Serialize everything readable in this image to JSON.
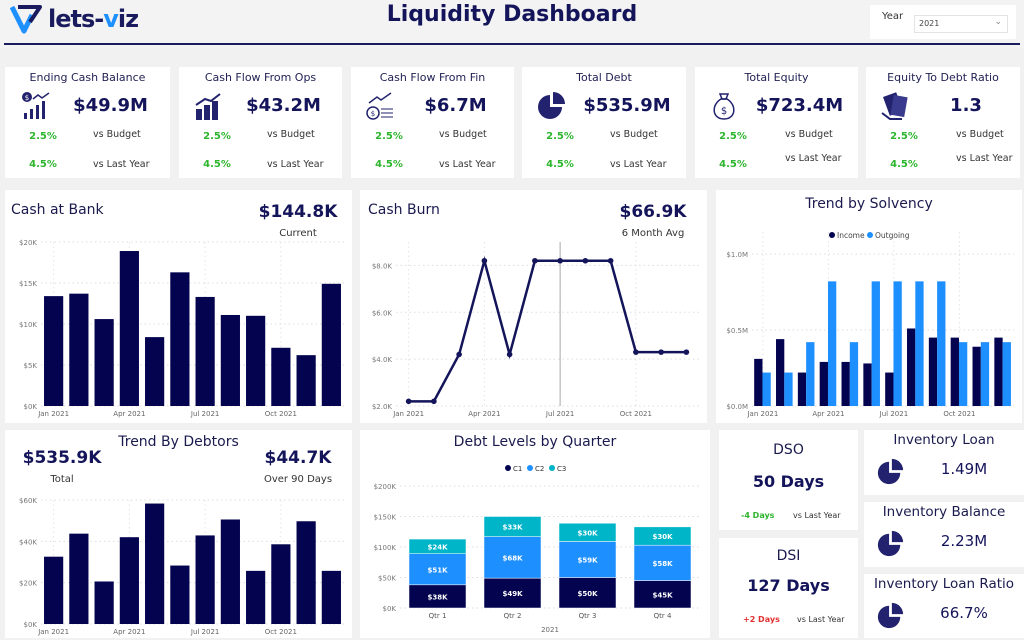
{
  "header": {
    "logo": "lets-viz",
    "title": "Liquidity Dashboard",
    "year_label": "Year",
    "year_value": "2021"
  },
  "colors": {
    "navy": "#03034f",
    "blue": "#1e8fff",
    "teal": "#00b5c8",
    "green": "#2db52d",
    "red": "#e03030"
  },
  "kpis": [
    {
      "title": "Ending Cash Balance",
      "icon": "cash-growth-icon",
      "value": "$49.9M",
      "budget": "2.5%",
      "budget_label": "vs Budget",
      "ly": "4.5%",
      "ly_label": "vs Last Year"
    },
    {
      "title": "Cash Flow From Ops",
      "icon": "bar-growth-icon",
      "value": "$43.2M",
      "budget": "2.5%",
      "budget_label": "vs Budget",
      "ly": "4.5%",
      "ly_label": "vs Last Year"
    },
    {
      "title": "Cash Flow From Fin",
      "icon": "coin-trend-icon",
      "value": "$6.7M",
      "budget": "2.5%",
      "budget_label": "vs Budget",
      "ly": "4.5%",
      "ly_label": "vs Last Year"
    },
    {
      "title": "Total Debt",
      "icon": "pie-chart-icon",
      "value": "$535.9M",
      "budget": "2.5%",
      "budget_label": "vs Budget",
      "ly": "4.5%",
      "ly_label": "vs Last Year"
    },
    {
      "title": "Total Equity",
      "icon": "money-bag-icon",
      "value": "$723.4M",
      "budget": "2.5%",
      "budget_label": "vs Budget",
      "ly": "4.5%",
      "ly_label": "vs Last Year"
    },
    {
      "title": "Equity To Debt Ratio",
      "icon": "cash-hand-icon",
      "value": "1.3",
      "budget": "2.5%",
      "budget_label": "vs Budget",
      "ly": "4.5%",
      "ly_label": "vs Last Year"
    }
  ],
  "cash_bank": {
    "title": "Cash at Bank",
    "value": "$144.8K",
    "sub": "Current"
  },
  "cash_burn": {
    "title": "Cash Burn",
    "value": "$66.9K",
    "sub": "6 Month Avg"
  },
  "debtors": {
    "title": "Trend By Debtors",
    "total": "$535.9K",
    "total_label": "Total",
    "over90": "$44.7K",
    "over90_label": "Over 90 Days"
  },
  "dso": {
    "title": "DSO",
    "value": "50 Days",
    "delta": "-4 Days",
    "delta_label": "vs Last Year"
  },
  "dsi": {
    "title": "DSI",
    "value": "127 Days",
    "delta": "+2 Days",
    "delta_label": "vs Last Year"
  },
  "inventory": [
    {
      "title": "Inventory Loan",
      "value": "1.49M",
      "icon": "pie-chart-icon"
    },
    {
      "title": "Inventory Balance",
      "value": "2.23M",
      "icon": "pie-chart-icon"
    },
    {
      "title": "Inventory Loan Ratio",
      "value": "66.7%",
      "icon": "pie-chart-icon"
    }
  ],
  "chart_data": [
    {
      "id": "cash_bank",
      "type": "bar",
      "x": [
        "Jan 2021",
        "Feb 2021",
        "Mar 2021",
        "Apr 2021",
        "May 2021",
        "Jun 2021",
        "Jul 2021",
        "Aug 2021",
        "Sep 2021",
        "Oct 2021",
        "Nov 2021",
        "Dec 2021"
      ],
      "values": [
        13.4,
        13.7,
        10.6,
        18.9,
        8.4,
        16.3,
        13.3,
        11.1,
        11.0,
        7.1,
        6.2,
        14.9
      ],
      "unit": "$K",
      "xticks": [
        "Jan 2021",
        "Apr 2021",
        "Jul 2021",
        "Oct 2021"
      ],
      "yticks": [
        "$0K",
        "$5K",
        "$10K",
        "$15K",
        "$20K"
      ],
      "ylim": [
        0,
        20
      ],
      "grid": true
    },
    {
      "id": "cash_burn",
      "type": "line",
      "x": [
        "Jan 2021",
        "Feb 2021",
        "Mar 2021",
        "Apr 2021",
        "May 2021",
        "Jun 2021",
        "Jul 2021",
        "Aug 2021",
        "Sep 2021",
        "Oct 2021",
        "Nov 2021",
        "Dec 2021"
      ],
      "values": [
        2.2,
        2.2,
        4.2,
        8.2,
        4.2,
        8.2,
        8.2,
        8.2,
        8.2,
        4.3,
        4.3,
        4.3
      ],
      "unit": "$K",
      "xticks": [
        "Jan 2021",
        "Apr 2021",
        "Jul 2021",
        "Oct 2021"
      ],
      "yticks": [
        "$2.0K",
        "$4.0K",
        "$6.0K",
        "$8.0K"
      ],
      "ylim": [
        2,
        9
      ],
      "grid": true
    },
    {
      "id": "solvency",
      "type": "bar",
      "title": "Trend by Solvency",
      "x": [
        "Jan 2021",
        "Feb 2021",
        "Mar 2021",
        "Apr 2021",
        "May 2021",
        "Jun 2021",
        "Jul 2021",
        "Aug 2021",
        "Sep 2021",
        "Oct 2021",
        "Nov 2021",
        "Dec 2021"
      ],
      "series": [
        {
          "name": "Income",
          "values": [
            0.31,
            0.44,
            0.22,
            0.29,
            0.29,
            0.28,
            0.22,
            0.51,
            0.45,
            0.45,
            0.39,
            0.45
          ]
        },
        {
          "name": "Outgoing",
          "values": [
            0.22,
            0.22,
            0.42,
            0.82,
            0.42,
            0.82,
            0.82,
            0.82,
            0.82,
            0.42,
            0.42,
            0.42
          ]
        }
      ],
      "unit": "$M",
      "legend": "top",
      "xticks": [
        "Jan 2021",
        "Apr 2021",
        "Jul 2021",
        "Oct 2021"
      ],
      "yticks": [
        "$0.0M",
        "$0.5M",
        "$1.0M"
      ],
      "ylim": [
        0,
        1
      ],
      "grid": true
    },
    {
      "id": "debtors",
      "type": "bar",
      "x": [
        "Jan 2021",
        "Feb 2021",
        "Mar 2021",
        "Apr 2021",
        "May 2021",
        "Jun 2021",
        "Jul 2021",
        "Aug 2021",
        "Sep 2021",
        "Oct 2021",
        "Nov 2021",
        "Dec 2021"
      ],
      "values": [
        38,
        51,
        24,
        49,
        68,
        33,
        50,
        59,
        30,
        45,
        58,
        30
      ],
      "unit": "$K",
      "xticks": [
        "Jan 2021",
        "Apr 2021",
        "Jul 2021",
        "Oct 2021"
      ],
      "yticks": [
        "$0K",
        "$20K",
        "$40K",
        "$60K"
      ],
      "ylim": [
        0,
        70
      ],
      "grid": true
    },
    {
      "id": "debt_levels",
      "type": "bar",
      "stacked": true,
      "title": "Debt Levels by Quarter",
      "categories": [
        "Qtr 1",
        "Qtr 2",
        "Qtr 3",
        "Qtr 4"
      ],
      "xgroup": "2021",
      "series": [
        {
          "name": "C1",
          "values": [
            38,
            49,
            50,
            45
          ],
          "labels": [
            "$38K",
            "$49K",
            "$50K",
            "$45K"
          ]
        },
        {
          "name": "C2",
          "values": [
            51,
            68,
            59,
            58
          ],
          "labels": [
            "$51K",
            "$68K",
            "$59K",
            "$58K"
          ]
        },
        {
          "name": "C3",
          "values": [
            24,
            33,
            30,
            30
          ],
          "labels": [
            "$24K",
            "$33K",
            "$30K",
            "$30K"
          ]
        }
      ],
      "unit": "$K",
      "legend": "top",
      "yticks": [
        "$0K",
        "$50K",
        "$100K",
        "$150K",
        "$200K"
      ],
      "ylim": [
        0,
        200
      ],
      "grid": true
    }
  ]
}
